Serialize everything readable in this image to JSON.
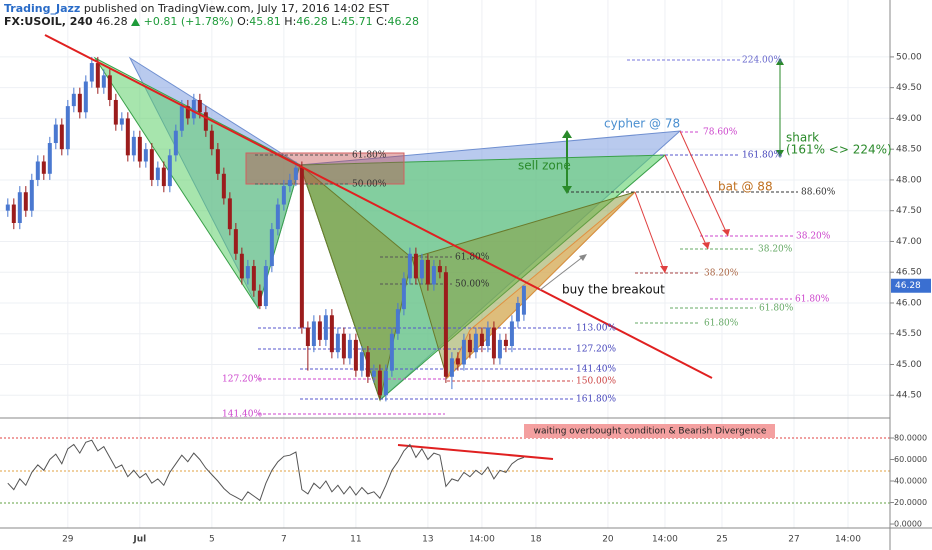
{
  "chart_data": {
    "type": "candlestick",
    "header": {
      "author": "Trading_Jazz",
      "published": "published on TradingView.com, July 17, 2016 14:02 EST",
      "symbol": "FX:USOIL, 240",
      "change": "+0.81 (+1.78%)",
      "ohlc_labels": [
        "O:",
        "H:",
        "L:",
        "C:"
      ]
    },
    "up_color": "#4a78d0",
    "down_color": "#9b1c1c",
    "ylim": [
      44.13,
      50.6
    ],
    "yticks": [
      {
        "value": 50,
        "label": "50.00"
      },
      {
        "value": 49.5,
        "label": "49.50"
      },
      {
        "value": 49,
        "label": "49.00"
      },
      {
        "value": 48.5,
        "label": "48.50"
      },
      {
        "value": 48,
        "label": "48.00"
      },
      {
        "value": 47.5,
        "label": "47.50"
      },
      {
        "value": 47,
        "label": "47.00"
      },
      {
        "value": 46.5,
        "label": "46.50"
      },
      {
        "value": 46,
        "label": "46.00"
      },
      {
        "value": 45.5,
        "label": "45.50"
      },
      {
        "value": 45,
        "label": "45.00"
      },
      {
        "value": 44.5,
        "label": "44.50"
      }
    ],
    "xlim": [
      -1.3,
      147
    ],
    "xticks": [
      {
        "value": 10,
        "label": "29"
      },
      {
        "value": 22,
        "label": "Jul"
      },
      {
        "value": 34,
        "label": "5"
      },
      {
        "value": 46,
        "label": "7"
      },
      {
        "value": 58,
        "label": "11"
      },
      {
        "value": 70,
        "label": "13"
      },
      {
        "value": 79,
        "label": "14:00"
      },
      {
        "value": 88,
        "label": "18"
      },
      {
        "value": 100,
        "label": "20"
      },
      {
        "value": 109.5,
        "label": "14:00"
      },
      {
        "value": 119,
        "label": "25"
      },
      {
        "value": 131,
        "label": "27"
      },
      {
        "value": 140,
        "label": "14:00"
      }
    ],
    "ohlc": [
      [
        47.5,
        47.7,
        47.4,
        47.6
      ],
      [
        47.6,
        47.7,
        47.2,
        47.3
      ],
      [
        47.3,
        47.9,
        47.2,
        47.8
      ],
      [
        47.8,
        47.9,
        47.4,
        47.5
      ],
      [
        47.5,
        48.1,
        47.4,
        48.0
      ],
      [
        48.0,
        48.4,
        47.9,
        48.3
      ],
      [
        48.3,
        48.4,
        48.0,
        48.1
      ],
      [
        48.1,
        48.7,
        48.0,
        48.6
      ],
      [
        48.6,
        49.0,
        48.5,
        48.9
      ],
      [
        48.9,
        49.0,
        48.4,
        48.5
      ],
      [
        48.5,
        49.3,
        48.4,
        49.2
      ],
      [
        49.2,
        49.5,
        49.1,
        49.4
      ],
      [
        49.4,
        49.5,
        49.0,
        49.1
      ],
      [
        49.1,
        49.7,
        49.0,
        49.6
      ],
      [
        49.6,
        50.0,
        49.5,
        49.9
      ],
      [
        49.9,
        50.0,
        49.4,
        49.5
      ],
      [
        49.5,
        49.8,
        49.4,
        49.7
      ],
      [
        49.7,
        49.8,
        49.2,
        49.3
      ],
      [
        49.3,
        49.4,
        48.8,
        48.9
      ],
      [
        48.9,
        49.1,
        48.8,
        49.0
      ],
      [
        49.0,
        49.1,
        48.3,
        48.4
      ],
      [
        48.4,
        48.8,
        48.3,
        48.7
      ],
      [
        48.7,
        48.8,
        48.2,
        48.3
      ],
      [
        48.3,
        48.6,
        48.2,
        48.5
      ],
      [
        48.5,
        48.6,
        47.9,
        48.0
      ],
      [
        48.0,
        48.3,
        47.9,
        48.2
      ],
      [
        48.2,
        48.3,
        47.8,
        47.9
      ],
      [
        47.9,
        48.5,
        47.8,
        48.4
      ],
      [
        48.4,
        48.9,
        48.3,
        48.8
      ],
      [
        48.8,
        49.3,
        48.7,
        49.2
      ],
      [
        49.2,
        49.3,
        48.9,
        49.0
      ],
      [
        49.0,
        49.4,
        48.9,
        49.3
      ],
      [
        49.3,
        49.4,
        49.0,
        49.1
      ],
      [
        49.1,
        49.2,
        48.7,
        48.8
      ],
      [
        48.8,
        48.9,
        48.4,
        48.5
      ],
      [
        48.5,
        48.6,
        48.0,
        48.1
      ],
      [
        48.1,
        48.2,
        47.6,
        47.7
      ],
      [
        47.7,
        47.8,
        47.1,
        47.2
      ],
      [
        47.2,
        47.3,
        46.7,
        46.8
      ],
      [
        46.8,
        46.9,
        46.3,
        46.4
      ],
      [
        46.4,
        46.7,
        46.3,
        46.6
      ],
      [
        46.6,
        46.7,
        46.1,
        46.2
      ],
      [
        46.2,
        46.3,
        45.9,
        45.95
      ],
      [
        45.95,
        46.7,
        45.9,
        46.6
      ],
      [
        46.6,
        47.3,
        46.5,
        47.2
      ],
      [
        47.2,
        47.7,
        47.1,
        47.6
      ],
      [
        47.6,
        48.0,
        47.5,
        47.9
      ],
      [
        47.9,
        48.1,
        47.8,
        48.0
      ],
      [
        48.0,
        48.3,
        47.9,
        48.2
      ],
      [
        48.2,
        48.3,
        45.5,
        45.6
      ],
      [
        45.6,
        45.7,
        44.9,
        45.3
      ],
      [
        45.3,
        45.8,
        45.2,
        45.7
      ],
      [
        45.7,
        45.8,
        45.3,
        45.4
      ],
      [
        45.4,
        45.9,
        45.3,
        45.8
      ],
      [
        45.8,
        45.9,
        45.1,
        45.2
      ],
      [
        45.2,
        45.6,
        45.1,
        45.5
      ],
      [
        45.5,
        45.6,
        45.0,
        45.1
      ],
      [
        45.1,
        45.5,
        45.0,
        45.4
      ],
      [
        45.4,
        45.5,
        44.8,
        44.9
      ],
      [
        44.9,
        45.3,
        44.8,
        45.2
      ],
      [
        45.2,
        45.3,
        44.7,
        44.8
      ],
      [
        44.8,
        45.0,
        44.7,
        44.9
      ],
      [
        44.9,
        45.0,
        44.45,
        44.5
      ],
      [
        44.5,
        45.0,
        44.4,
        44.9
      ],
      [
        44.9,
        45.6,
        44.8,
        45.5
      ],
      [
        45.5,
        46.0,
        45.4,
        45.9
      ],
      [
        45.9,
        46.5,
        45.8,
        46.4
      ],
      [
        46.4,
        46.9,
        46.3,
        46.8
      ],
      [
        46.8,
        46.9,
        46.3,
        46.4
      ],
      [
        46.4,
        46.8,
        46.3,
        46.7
      ],
      [
        46.7,
        46.8,
        46.2,
        46.3
      ],
      [
        46.3,
        46.7,
        46.2,
        46.6
      ],
      [
        46.6,
        46.7,
        46.4,
        46.5
      ],
      [
        46.5,
        46.6,
        44.7,
        44.8
      ],
      [
        44.8,
        45.2,
        44.6,
        45.1
      ],
      [
        45.1,
        45.2,
        44.9,
        45.0
      ],
      [
        45.0,
        45.5,
        44.9,
        45.4
      ],
      [
        45.4,
        45.5,
        45.1,
        45.2
      ],
      [
        45.2,
        45.6,
        45.1,
        45.5
      ],
      [
        45.5,
        45.6,
        45.2,
        45.3
      ],
      [
        45.3,
        45.7,
        45.2,
        45.6
      ],
      [
        45.6,
        45.7,
        45.0,
        45.1
      ],
      [
        45.1,
        45.5,
        45.0,
        45.4
      ],
      [
        45.4,
        45.5,
        45.2,
        45.3
      ],
      [
        45.3,
        45.8,
        45.2,
        45.7
      ],
      [
        45.7,
        46.1,
        45.6,
        46.0
      ],
      [
        45.81,
        46.28,
        45.71,
        46.28
      ]
    ],
    "rsi": [
      38,
      32,
      42,
      36,
      48,
      55,
      50,
      60,
      65,
      56,
      70,
      74,
      66,
      76,
      78,
      68,
      72,
      62,
      52,
      55,
      44,
      50,
      43,
      47,
      38,
      42,
      36,
      48,
      56,
      64,
      58,
      66,
      60,
      52,
      46,
      40,
      33,
      28,
      25,
      22,
      30,
      26,
      22,
      38,
      50,
      58,
      63,
      64,
      67,
      32,
      28,
      38,
      33,
      40,
      30,
      36,
      28,
      35,
      27,
      34,
      28,
      30,
      24,
      36,
      50,
      58,
      68,
      74,
      62,
      70,
      60,
      66,
      64,
      35,
      42,
      40,
      48,
      44,
      50,
      46,
      53,
      42,
      50,
      48,
      56,
      60,
      62
    ],
    "rsi_ylim": [
      -3.7,
      98.6
    ],
    "rsi_yticks": [
      {
        "value": 80,
        "label": "80.0000"
      },
      {
        "value": 60,
        "label": "60.0000"
      },
      {
        "value": 40,
        "label": "40.0000"
      },
      {
        "value": 20,
        "label": "20.0000"
      },
      {
        "value": 0,
        "label": "0.0000"
      }
    ],
    "annotations": [
      "224.00%",
      "78.60%",
      "161.80%",
      "61.80%",
      "50.00%",
      "88.60%",
      "38.20%",
      "38.20%",
      "38.20%",
      "61.80%",
      "50.00%",
      "61.80%",
      "61.80%",
      "61.80%",
      "113.00%",
      "127.20%",
      "141.40%",
      "150.00%",
      "161.80%",
      "127.20%",
      "141.40%",
      "cypher @ 78",
      "sell zone",
      "bat @ 88",
      "shark",
      "(161% <> 224%)",
      "buy the breakout",
      "waiting overbought condition & Bearish Divergence"
    ]
  }
}
